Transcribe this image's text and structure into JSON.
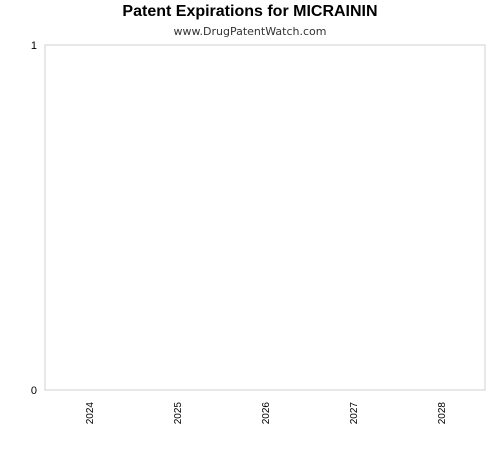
{
  "chart_data": {
    "type": "bar",
    "title": "Patent Expirations for MICRAININ",
    "subtitle": "www.DrugPatentWatch.com",
    "categories": [
      "2024",
      "2025",
      "2026",
      "2027",
      "2028"
    ],
    "series": [
      {
        "values": [
          0,
          0,
          0,
          0,
          0
        ]
      }
    ],
    "xlabel": "",
    "ylabel": "",
    "ylim": [
      0,
      1
    ],
    "yticks": [
      "0",
      "1"
    ],
    "grid": false,
    "legend": "none",
    "colors": {
      "plot_border": "#d0d0d0",
      "tick_text": "#000000",
      "bar": "#4a7ab5"
    }
  }
}
